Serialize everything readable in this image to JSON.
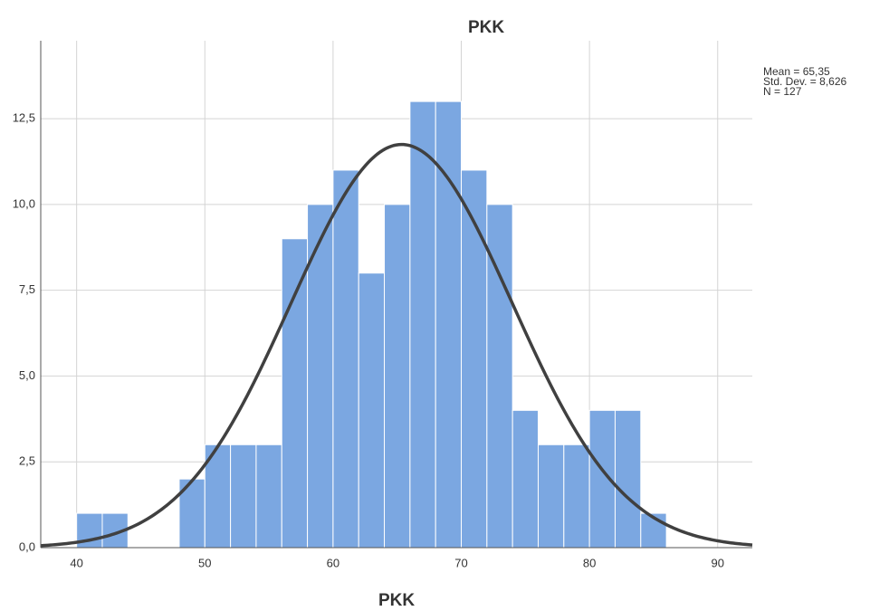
{
  "chart_data": {
    "type": "histogram",
    "title": "PKK",
    "x_label": "PKK",
    "bins": [
      40,
      42,
      44,
      46,
      48,
      50,
      52,
      54,
      56,
      58,
      60,
      62,
      64,
      66,
      68,
      70,
      72,
      74,
      76,
      78,
      80,
      82,
      84,
      86
    ],
    "values": [
      1,
      1,
      0,
      0,
      2,
      3,
      3,
      3,
      9,
      10,
      11,
      8,
      10,
      13,
      13,
      11,
      10,
      4,
      3,
      3,
      4,
      4,
      1
    ],
    "color": "#7ba7e1",
    "xlim": [
      37.2,
      92.7
    ],
    "ylim": [
      0,
      14.77
    ],
    "xticks": [
      40,
      50,
      60,
      70,
      80,
      90
    ],
    "yticks": [
      {
        "value": 0,
        "label": "0,0"
      },
      {
        "value": 2.5,
        "label": "2,5"
      },
      {
        "value": 5,
        "label": "5,0"
      },
      {
        "value": 7.5,
        "label": "7,5"
      },
      {
        "value": 10,
        "label": "10,0"
      },
      {
        "value": 12.5,
        "label": "12,5"
      }
    ],
    "grid": true,
    "normal_curve": {
      "mean": 65.35,
      "std": 8.626,
      "n": 127,
      "color": "#404040"
    },
    "stats_labels": [
      "Mean = 65,35",
      "Std. Dev. = 8,626",
      "N = 127"
    ]
  }
}
